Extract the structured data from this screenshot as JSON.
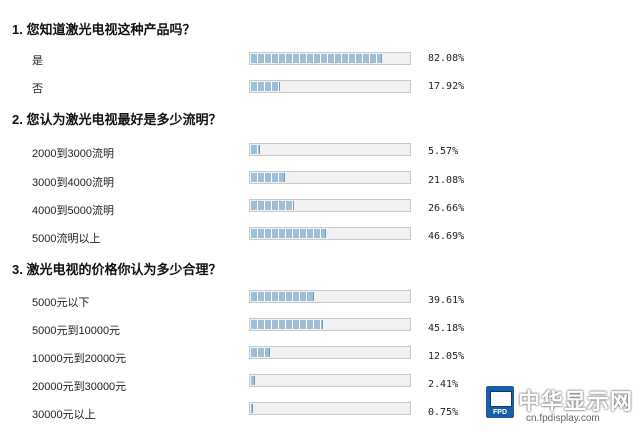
{
  "questions": [
    {
      "title": "1. 您知道激光电视这种产品吗？",
      "options": [
        {
          "label": "是",
          "percent": "82.08%",
          "value": 82.08
        },
        {
          "label": "否",
          "percent": "17.92%",
          "value": 17.92
        }
      ]
    },
    {
      "title": "2. 您认为激光电视最好是多少流明？",
      "options": [
        {
          "label": "2000到3000流明",
          "percent": "5.57%",
          "value": 5.57
        },
        {
          "label": "3000到4000流明",
          "percent": "21.08%",
          "value": 21.08
        },
        {
          "label": "4000到5000流明",
          "percent": "26.66%",
          "value": 26.66
        },
        {
          "label": "5000流明以上",
          "percent": "46.69%",
          "value": 46.69
        }
      ]
    },
    {
      "title": "3. 激光电视的价格你认为多少合理？",
      "options": [
        {
          "label": "5000元以下",
          "percent": "39.61%",
          "value": 39.61
        },
        {
          "label": "5000元到10000元",
          "percent": "45.18%",
          "value": 45.18
        },
        {
          "label": "10000元到20000元",
          "percent": "12.05%",
          "value": 12.05
        },
        {
          "label": "20000元到30000元",
          "percent": "2.41%",
          "value": 2.41
        },
        {
          "label": "30000元以上",
          "percent": "0.75%",
          "value": 0.75
        }
      ]
    }
  ],
  "watermark": {
    "brand": "中华显示网",
    "site": "cn.fpdisplay.com",
    "icon_text": "FPD"
  },
  "colors": {
    "bar_fill": "#9dc0d8",
    "bar_track": "#f1f1f1"
  }
}
